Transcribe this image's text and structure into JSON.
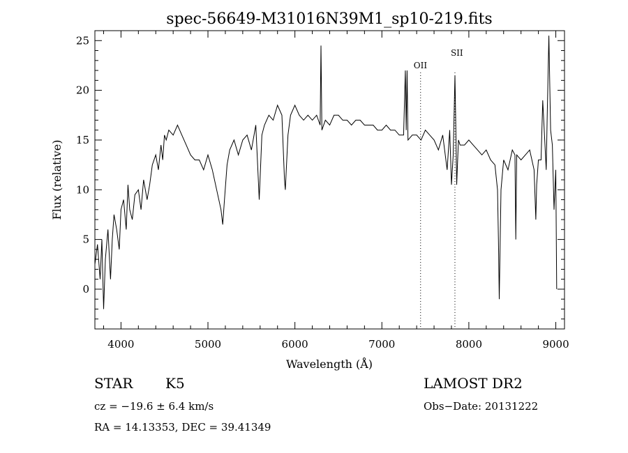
{
  "chart_data": {
    "type": "line",
    "title": "spec-56649-M31016N39M1_sp10-219.fits",
    "xlabel": "Wavelength (Å)",
    "ylabel": "Flux (relative)",
    "xlim": [
      3700,
      9100
    ],
    "ylim": [
      -4,
      26
    ],
    "xticks": [
      "4000",
      "5000",
      "6000",
      "7000",
      "8000",
      "9000"
    ],
    "yticks": [
      "0",
      "5",
      "10",
      "15",
      "20",
      "25"
    ],
    "grid": false,
    "legend": "none",
    "line_color": "#000000",
    "reference_lines": [
      {
        "label": "OII",
        "x": 7445
      },
      {
        "label": "SII",
        "x": 7840
      }
    ],
    "series": [
      {
        "x": [
          3700,
          3730,
          3760,
          3780,
          3800,
          3820,
          3850,
          3880,
          3900,
          3920,
          3950,
          3980,
          4000,
          4030,
          4060,
          4080,
          4100,
          4130,
          4160,
          4200,
          4230,
          4260,
          4300,
          4330,
          4360,
          4400,
          4430,
          4460,
          4480,
          4500,
          4520,
          4550,
          4600,
          4650,
          4700,
          4750,
          4800,
          4850,
          4900,
          4950,
          5000,
          5050,
          5100,
          5150,
          5170,
          5190,
          5220,
          5250,
          5300,
          5350,
          5400,
          5450,
          5500,
          5550,
          5590,
          5620,
          5650,
          5700,
          5750,
          5800,
          5850,
          5880,
          5890,
          5920,
          5950,
          6000,
          6050,
          6100,
          6150,
          6200,
          6250,
          6290,
          6300,
          6310,
          6350,
          6400,
          6450,
          6500,
          6550,
          6600,
          6650,
          6700,
          6750,
          6800,
          6850,
          6900,
          6950,
          7000,
          7050,
          7100,
          7150,
          7200,
          7250,
          7270,
          7280,
          7290,
          7300,
          7350,
          7400,
          7450,
          7500,
          7550,
          7600,
          7650,
          7700,
          7750,
          7780,
          7800,
          7820,
          7840,
          7850,
          7860,
          7880,
          7900,
          7950,
          8000,
          8050,
          8100,
          8150,
          8200,
          8250,
          8300,
          8330,
          8340,
          8350,
          8370,
          8400,
          8450,
          8500,
          8530,
          8540,
          8550,
          8600,
          8650,
          8700,
          8750,
          8770,
          8780,
          8800,
          8830,
          8850,
          8870,
          8890,
          8900,
          8920,
          8940,
          8960,
          8980,
          9000,
          9010
        ],
        "y": [
          2.5,
          4.5,
          1.0,
          5.0,
          -2.0,
          3.0,
          6.0,
          1.0,
          5.0,
          7.5,
          6.0,
          4.0,
          8.0,
          9.0,
          6.0,
          10.5,
          8.0,
          7.0,
          9.5,
          10.0,
          8.0,
          11.0,
          9.0,
          10.5,
          12.5,
          13.5,
          12.0,
          14.5,
          13.0,
          15.5,
          15.0,
          16.0,
          15.5,
          16.5,
          15.5,
          14.5,
          13.5,
          13.0,
          13.0,
          12.0,
          13.5,
          12.0,
          10.0,
          8.0,
          6.5,
          9.0,
          12.5,
          14.0,
          15.0,
          13.5,
          15.0,
          15.5,
          14.0,
          16.5,
          9.0,
          15.5,
          16.5,
          17.5,
          17.0,
          18.5,
          17.5,
          11.0,
          10.0,
          15.5,
          17.5,
          18.5,
          17.5,
          17.0,
          17.5,
          17.0,
          17.5,
          16.5,
          24.5,
          16.0,
          17.0,
          16.5,
          17.5,
          17.5,
          17.0,
          17.0,
          16.5,
          17.0,
          17.0,
          16.5,
          16.5,
          16.5,
          16.0,
          16.0,
          16.5,
          16.0,
          16.0,
          15.5,
          15.5,
          22.0,
          16.0,
          22.0,
          15.0,
          15.5,
          15.5,
          15.0,
          16.0,
          15.5,
          15.0,
          14.0,
          15.5,
          12.0,
          16.0,
          10.5,
          13.5,
          21.5,
          16.5,
          10.5,
          15.0,
          14.5,
          14.5,
          15.0,
          14.5,
          14.0,
          13.5,
          14.0,
          13.0,
          12.5,
          10.0,
          5.0,
          -1.0,
          10.0,
          13.0,
          12.0,
          14.0,
          13.5,
          5.0,
          13.5,
          13.0,
          13.5,
          14.0,
          12.0,
          7.0,
          10.5,
          13.0,
          13.0,
          19.0,
          15.5,
          12.0,
          17.0,
          25.5,
          16.0,
          14.5,
          8.0,
          12.0,
          0.0
        ]
      }
    ]
  },
  "footer": {
    "class_label": "STAR",
    "subclass_label": "K5",
    "survey": "LAMOST DR2",
    "cz": "cz = −19.6 ± 6.4 km/s",
    "obs_date": "Obs−Date: 20131222",
    "coords": "RA =  14.13353, DEC =  39.41349"
  }
}
